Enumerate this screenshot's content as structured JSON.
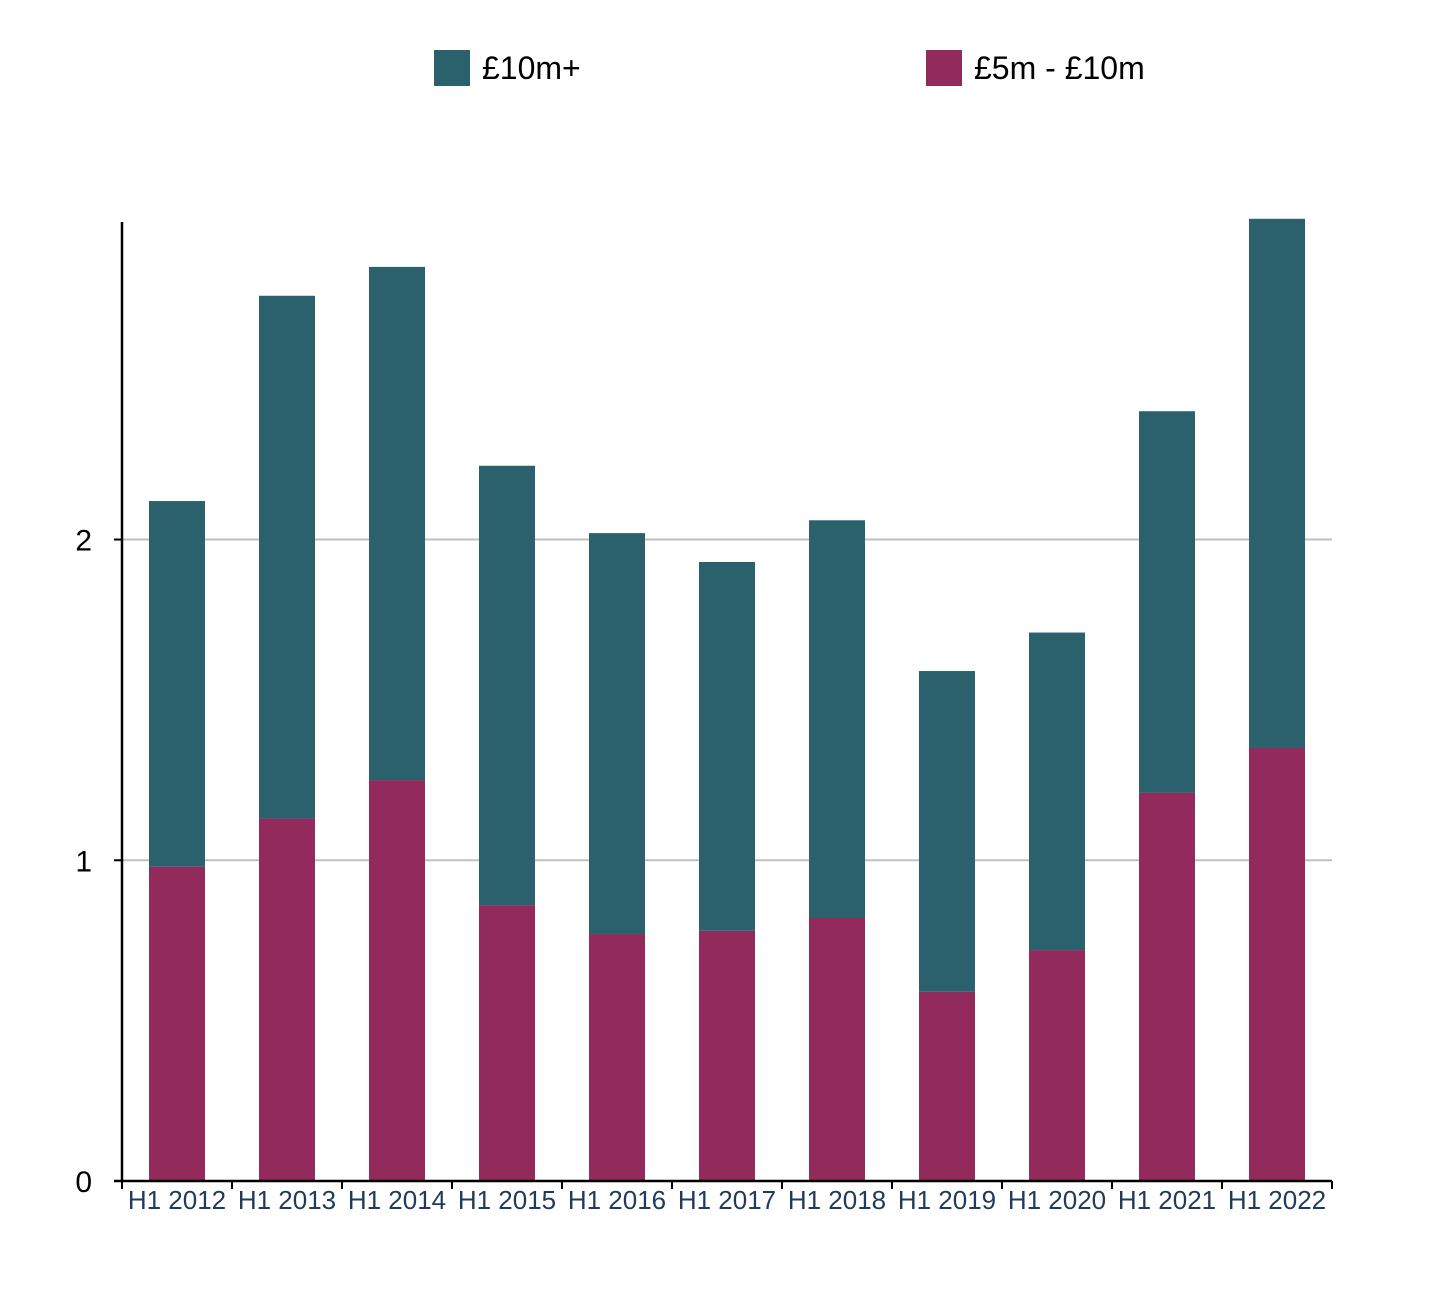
{
  "chart_data": {
    "type": "bar",
    "stacked": true,
    "title": "",
    "xlabel": "",
    "ylabel": "",
    "categories": [
      "H1 2012",
      "H1 2013",
      "H1 2014",
      "H1 2015",
      "H1 2016",
      "H1 2017",
      "H1 2018",
      "H1 2019",
      "H1 2020",
      "H1 2021",
      "H1 2022"
    ],
    "series": [
      {
        "name": "£5m - £10m",
        "color": "#922a5c",
        "values": [
          0.98,
          1.13,
          1.25,
          0.86,
          0.77,
          0.78,
          0.82,
          0.59,
          0.72,
          1.21,
          1.35
        ]
      },
      {
        "name": "£10m+",
        "color": "#2b616d",
        "values": [
          1.14,
          1.63,
          1.6,
          1.37,
          1.25,
          1.15,
          1.24,
          1.0,
          0.99,
          1.19,
          1.65
        ]
      }
    ],
    "yticks": [
      0,
      1,
      2
    ],
    "ylim": [
      0,
      2.99
    ],
    "grid": "horizontal",
    "legend_position": "top",
    "legend": [
      {
        "label": "£10m+",
        "color": "#2b616d"
      },
      {
        "label": "£5m - £10m",
        "color": "#922a5c"
      }
    ],
    "colors": {
      "gridline": "#c0c0c0",
      "axis": "#000000",
      "xtick_text": "#1f3a5a"
    }
  }
}
